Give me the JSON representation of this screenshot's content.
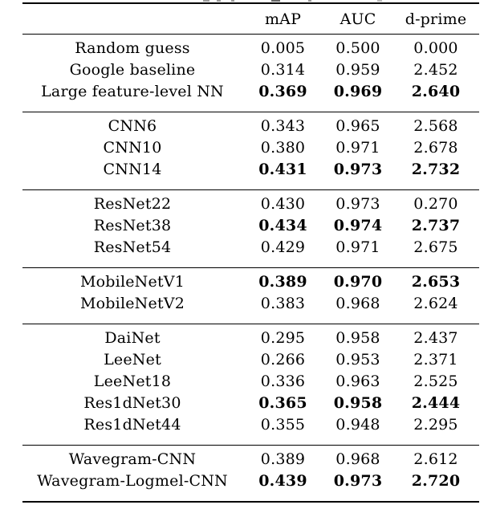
{
  "page": {
    "background_color": "#ffffff",
    "text_color": "#000000",
    "rule_color": "#000000",
    "description_of_top_edge": "unreadable cropped caption fragments"
  },
  "chart_data": {
    "type": "table",
    "columns": [
      "",
      "mAP",
      "AUC",
      "d-prime"
    ],
    "groups": [
      {
        "rows": [
          {
            "label": "Random guess",
            "map": "0.005",
            "auc": "0.500",
            "dprime": "0.000",
            "bold": false
          },
          {
            "label": "Google baseline",
            "map": "0.314",
            "auc": "0.959",
            "dprime": "2.452",
            "bold": false
          },
          {
            "label": "Large feature-level NN",
            "map": "0.369",
            "auc": "0.969",
            "dprime": "2.640",
            "bold": true
          }
        ]
      },
      {
        "rows": [
          {
            "label": "CNN6",
            "map": "0.343",
            "auc": "0.965",
            "dprime": "2.568",
            "bold": false
          },
          {
            "label": "CNN10",
            "map": "0.380",
            "auc": "0.971",
            "dprime": "2.678",
            "bold": false
          },
          {
            "label": "CNN14",
            "map": "0.431",
            "auc": "0.973",
            "dprime": "2.732",
            "bold": true
          }
        ]
      },
      {
        "rows": [
          {
            "label": "ResNet22",
            "map": "0.430",
            "auc": "0.973",
            "dprime": "0.270",
            "bold": false
          },
          {
            "label": "ResNet38",
            "map": "0.434",
            "auc": "0.974",
            "dprime": "2.737",
            "bold": true
          },
          {
            "label": "ResNet54",
            "map": "0.429",
            "auc": "0.971",
            "dprime": "2.675",
            "bold": false
          }
        ]
      },
      {
        "rows": [
          {
            "label": "MobileNetV1",
            "map": "0.389",
            "auc": "0.970",
            "dprime": "2.653",
            "bold": true
          },
          {
            "label": "MobileNetV2",
            "map": "0.383",
            "auc": "0.968",
            "dprime": "2.624",
            "bold": false
          }
        ]
      },
      {
        "rows": [
          {
            "label": "DaiNet",
            "map": "0.295",
            "auc": "0.958",
            "dprime": "2.437",
            "bold": false
          },
          {
            "label": "LeeNet",
            "map": "0.266",
            "auc": "0.953",
            "dprime": "2.371",
            "bold": false
          },
          {
            "label": "LeeNet18",
            "map": "0.336",
            "auc": "0.963",
            "dprime": "2.525",
            "bold": false
          },
          {
            "label": "Res1dNet30",
            "map": "0.365",
            "auc": "0.958",
            "dprime": "2.444",
            "bold": true
          },
          {
            "label": "Res1dNet44",
            "map": "0.355",
            "auc": "0.948",
            "dprime": "2.295",
            "bold": false
          }
        ]
      },
      {
        "rows": [
          {
            "label": "Wavegram-CNN",
            "map": "0.389",
            "auc": "0.968",
            "dprime": "2.612",
            "bold": false
          },
          {
            "label": "Wavegram-Logmel-CNN",
            "map": "0.439",
            "auc": "0.973",
            "dprime": "2.720",
            "bold": true
          }
        ]
      }
    ]
  }
}
